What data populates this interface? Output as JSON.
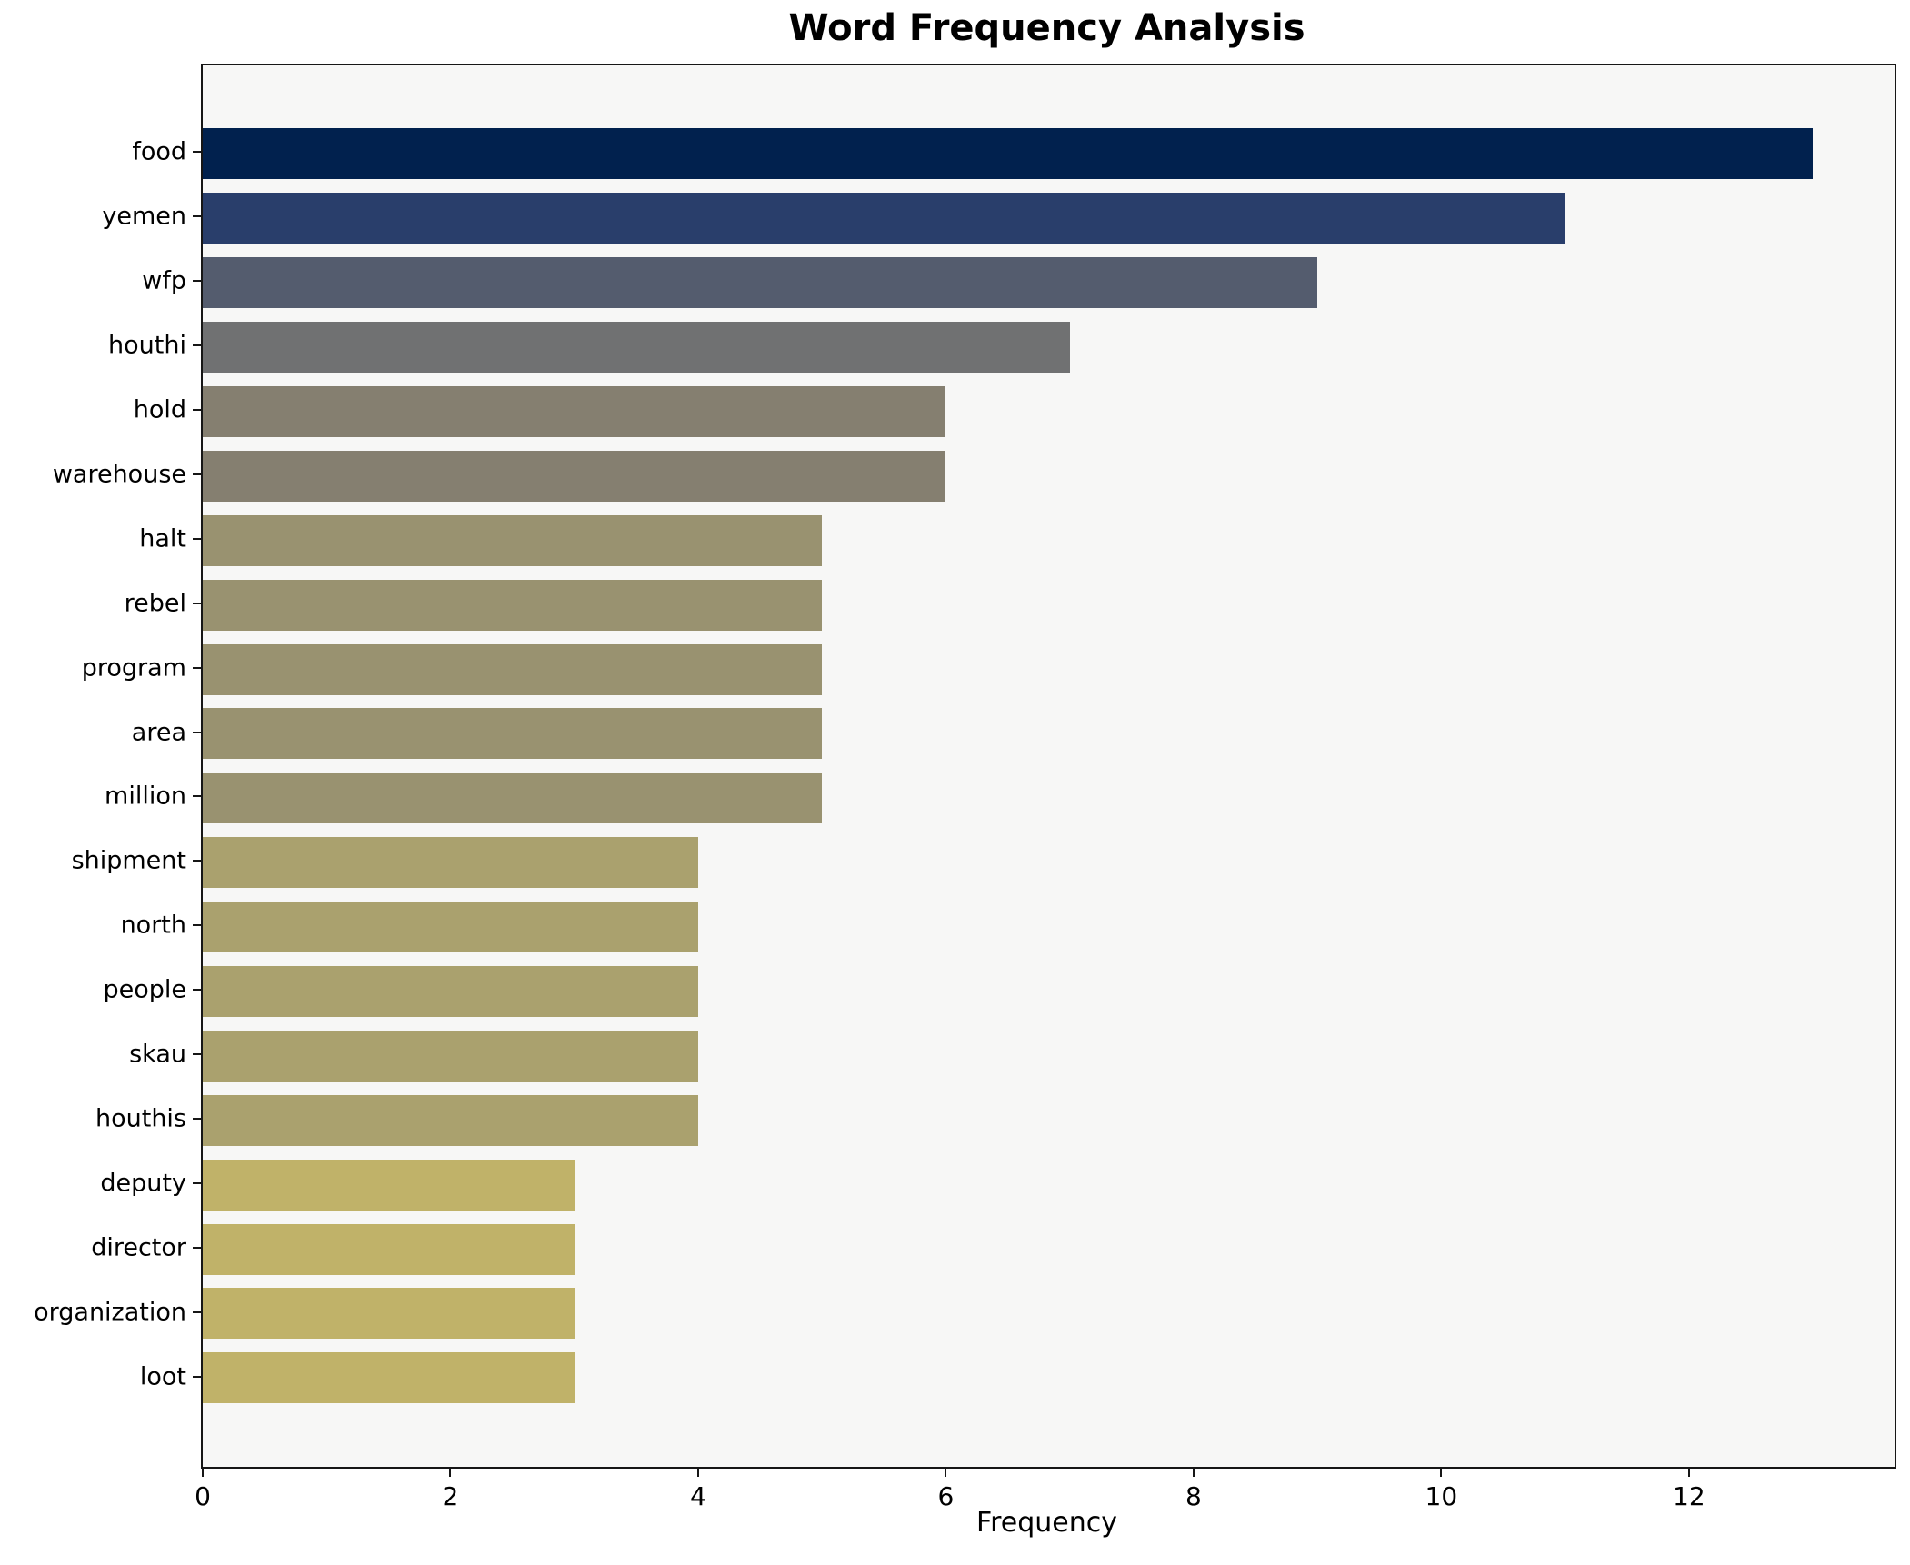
{
  "title": "Word Frequency Analysis",
  "chart_data": {
    "type": "bar",
    "orientation": "horizontal",
    "title": "Word Frequency Analysis",
    "xlabel": "Frequency",
    "ylabel": "",
    "categories": [
      "food",
      "yemen",
      "wfp",
      "houthi",
      "hold",
      "warehouse",
      "halt",
      "rebel",
      "program",
      "area",
      "million",
      "shipment",
      "north",
      "people",
      "skau",
      "houthis",
      "deputy",
      "director",
      "organization",
      "loot"
    ],
    "values": [
      13,
      11,
      9,
      7,
      6,
      6,
      5,
      5,
      5,
      5,
      5,
      4,
      4,
      4,
      4,
      4,
      3,
      3,
      3,
      3
    ],
    "bar_colors": [
      "#01214e",
      "#293e6b",
      "#545c6e",
      "#707172",
      "#857f70",
      "#857f70",
      "#999270",
      "#999270",
      "#999270",
      "#999270",
      "#999270",
      "#aaa16e",
      "#aaa16e",
      "#aaa16e",
      "#aaa16e",
      "#aaa16e",
      "#c0b269",
      "#c0b269",
      "#c0b269",
      "#c0b269"
    ],
    "xlim": [
      0,
      13.66
    ],
    "xticks": [
      0,
      2,
      4,
      6,
      8,
      10,
      12
    ],
    "grid": false,
    "legend": false,
    "colormap": "cividis",
    "plot_background": "#f7f7f6",
    "figure_background": "#ffffff"
  }
}
